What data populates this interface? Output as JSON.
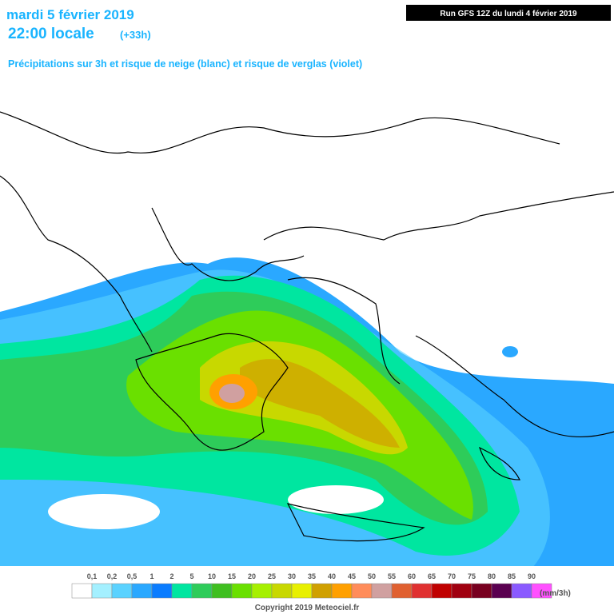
{
  "header": {
    "date": "mardi 5 février 2019",
    "time": "22:00 locale",
    "lead": "(+33h)",
    "subtitle": "Précipitations sur 3h et risque de neige (blanc) et risque de verglas (violet)",
    "run": "Run GFS 12Z du lundi 4 février 2019"
  },
  "legend": {
    "labels": [
      "0,1",
      "0,2",
      "0,5",
      "1",
      "2",
      "5",
      "10",
      "15",
      "20",
      "25",
      "30",
      "35",
      "40",
      "45",
      "50",
      "55",
      "60",
      "65",
      "70",
      "75",
      "80",
      "85",
      "90"
    ],
    "colors": [
      "#ffffff",
      "#a4f0ff",
      "#5ad2ff",
      "#2aa8ff",
      "#0a7cff",
      "#00e6a0",
      "#2ecc5a",
      "#3fbf20",
      "#6ae000",
      "#a6f000",
      "#c8d800",
      "#e8f000",
      "#d0a000",
      "#ffa000",
      "#ff8c5a",
      "#d0a0a0",
      "#e06030",
      "#e03030",
      "#c00000",
      "#a00010",
      "#780020",
      "#5a0050",
      "#8a5aff",
      "#ff50ff"
    ],
    "unit": "(mm/3h)"
  },
  "copyright": "Copyright 2019 Meteociel.fr"
}
